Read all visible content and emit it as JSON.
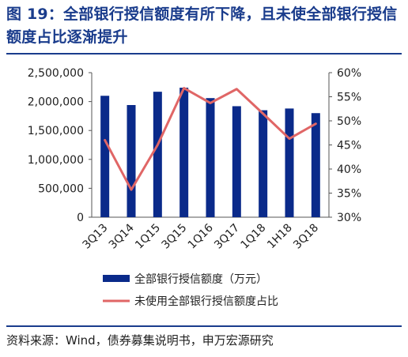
{
  "header": {
    "title": "图 19：全部银行授信额度有所下降，且未使全部银行授信额度占比逐渐提升"
  },
  "footer": {
    "source": "资料来源：Wind，债券募集说明书，申万宏源研究"
  },
  "colors": {
    "bar": "#0a2a8a",
    "line": "#e06666",
    "title": "#1a3c8c"
  },
  "chart_data": {
    "type": "bar+line",
    "categories": [
      "3Q13",
      "3Q14",
      "1Q15",
      "3Q15",
      "1Q16",
      "3Q17",
      "1Q18",
      "1H18",
      "3Q18"
    ],
    "series": [
      {
        "name": "全部银行授信额度（万元）",
        "type": "bar",
        "axis": "left",
        "values": [
          2100000,
          1940000,
          2170000,
          2240000,
          2060000,
          1920000,
          1850000,
          1880000,
          1800000
        ]
      },
      {
        "name": "未使用全部银行授信额度占比",
        "type": "line",
        "axis": "right",
        "values": [
          46.0,
          35.7,
          45.0,
          56.8,
          53.7,
          56.6,
          51.5,
          46.3,
          49.4
        ]
      }
    ],
    "y_left": {
      "min": 0,
      "max": 2500000,
      "ticks": [
        0,
        500000,
        1000000,
        1500000,
        2000000,
        2500000
      ],
      "tick_labels": [
        "0",
        "500,000",
        "1,000,000",
        "1,500,000",
        "2,000,000",
        "2,500,000"
      ]
    },
    "y_right": {
      "min": 30,
      "max": 60,
      "ticks": [
        30,
        35,
        40,
        45,
        50,
        55,
        60
      ],
      "tick_labels": [
        "30%",
        "35%",
        "40%",
        "45%",
        "50%",
        "55%",
        "60%"
      ]
    },
    "legend_position": "bottom",
    "grid": false
  }
}
